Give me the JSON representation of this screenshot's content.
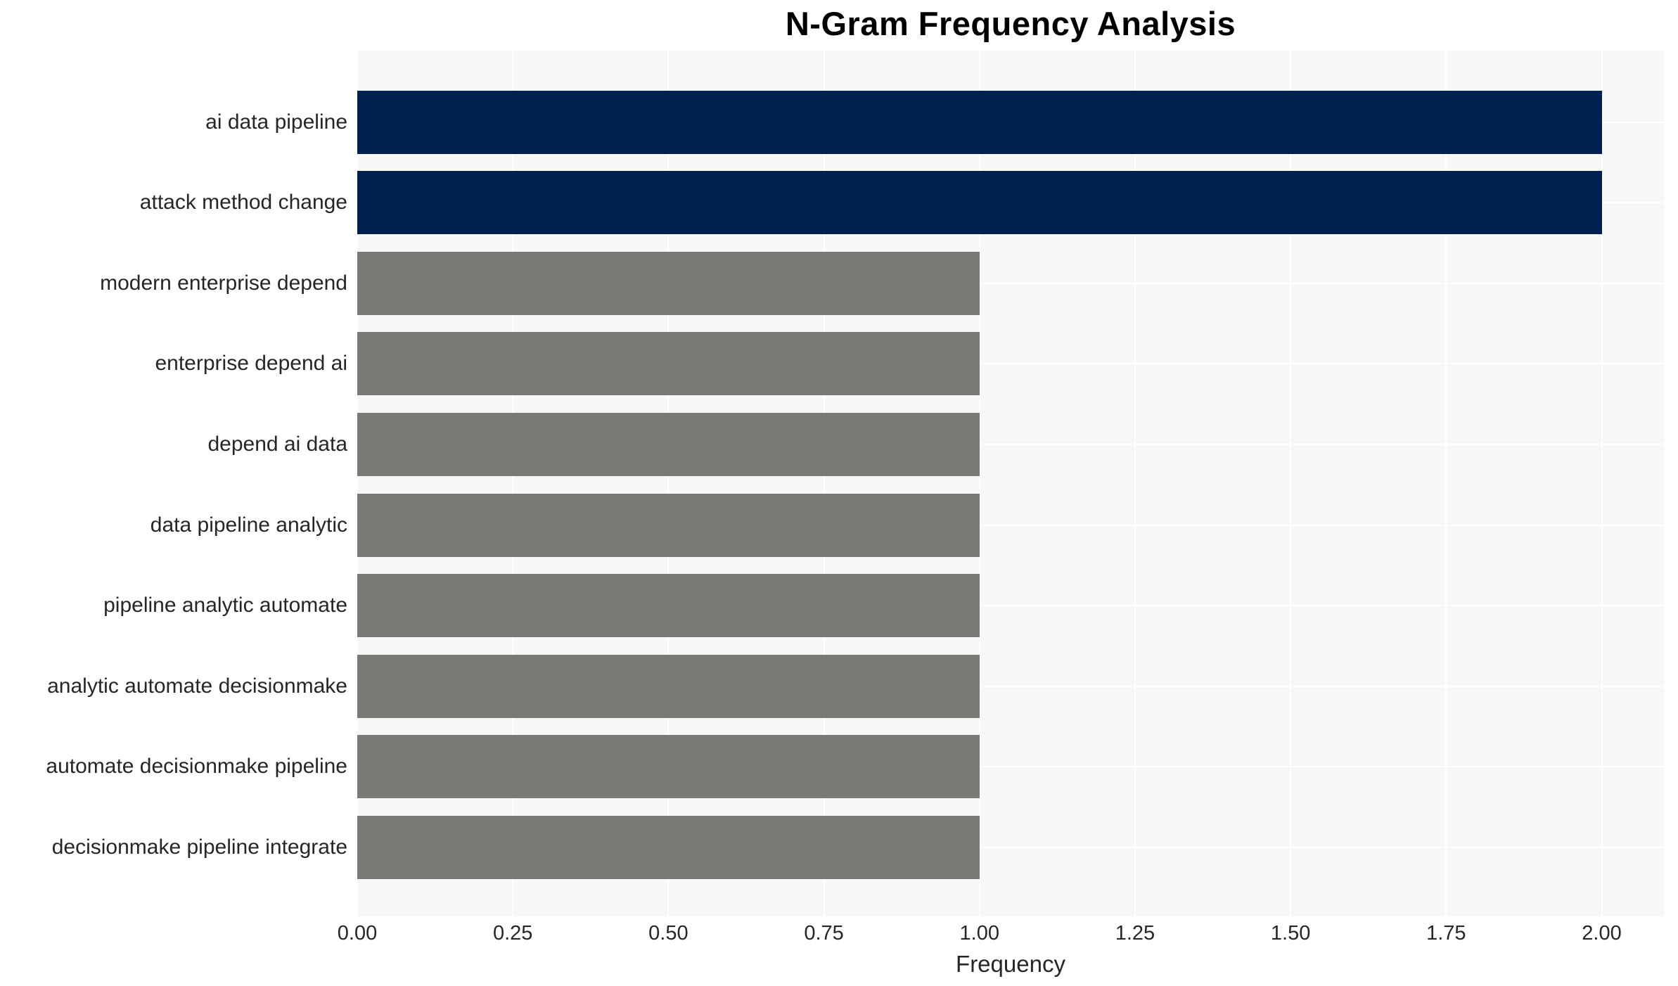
{
  "chart_data": {
    "type": "bar",
    "orientation": "horizontal",
    "title": "N-Gram Frequency Analysis",
    "xlabel": "Frequency",
    "ylabel": "",
    "categories": [
      "ai data pipeline",
      "attack method change",
      "modern enterprise depend",
      "enterprise depend ai",
      "depend ai data",
      "data pipeline analytic",
      "pipeline analytic automate",
      "analytic automate decisionmake",
      "automate decisionmake pipeline",
      "decisionmake pipeline integrate"
    ],
    "values": [
      2,
      2,
      1,
      1,
      1,
      1,
      1,
      1,
      1,
      1
    ],
    "bar_colors": [
      "#00214d",
      "#00214d",
      "#7a7a75",
      "#7a7a75",
      "#7a7a75",
      "#7a7a75",
      "#7a7a75",
      "#7a7a75",
      "#7a7a75",
      "#7a7a75"
    ],
    "xlim": [
      0,
      2.1
    ],
    "xticks": [
      {
        "value": 0.0,
        "label": "0.00"
      },
      {
        "value": 0.25,
        "label": "0.25"
      },
      {
        "value": 0.5,
        "label": "0.50"
      },
      {
        "value": 0.75,
        "label": "0.75"
      },
      {
        "value": 1.0,
        "label": "1.00"
      },
      {
        "value": 1.25,
        "label": "1.25"
      },
      {
        "value": 1.5,
        "label": "1.50"
      },
      {
        "value": 1.75,
        "label": "1.75"
      },
      {
        "value": 2.0,
        "label": "2.00"
      }
    ],
    "grid": true,
    "legend": "none",
    "plot_background": "#f7f7f7",
    "gridline_color": "#ffffff",
    "tick_text_color": "#262626",
    "title_color": "#000000"
  }
}
